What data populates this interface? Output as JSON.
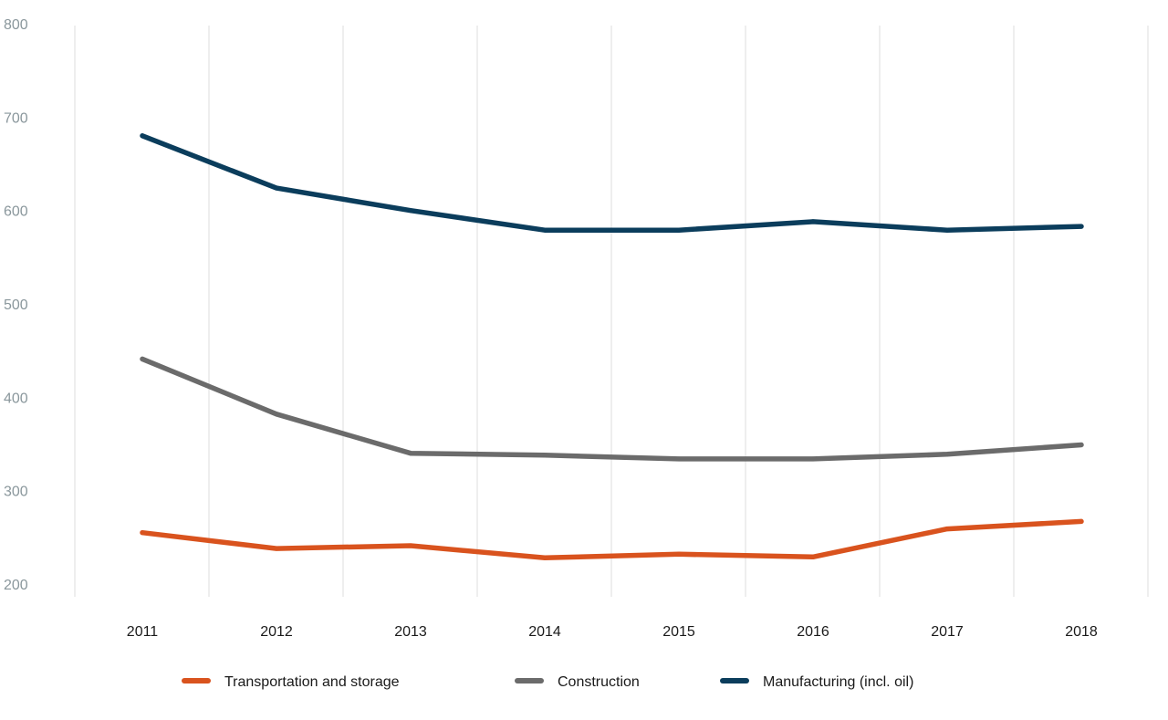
{
  "chart_data": {
    "type": "line",
    "title": "",
    "xlabel": "",
    "ylabel": "",
    "categories": [
      "2011",
      "2012",
      "2013",
      "2014",
      "2015",
      "2016",
      "2017",
      "2018"
    ],
    "ylim": [
      200,
      800
    ],
    "yticks": [
      800,
      700,
      600,
      500,
      400,
      300,
      200
    ],
    "grid": "vertical",
    "legend": "bottom",
    "series": [
      {
        "name": "Transportation and storage",
        "color": "#d9531e",
        "values": [
          255,
          238,
          241,
          228,
          232,
          229,
          259,
          267
        ]
      },
      {
        "name": "Construction",
        "color": "#6b6b6b",
        "values": [
          441,
          382,
          340,
          338,
          334,
          334,
          339,
          349
        ]
      },
      {
        "name": "Manufacturing (incl. oil)",
        "color": "#0b3d5c",
        "values": [
          680,
          624,
          600,
          579,
          579,
          588,
          579,
          583
        ]
      }
    ]
  }
}
